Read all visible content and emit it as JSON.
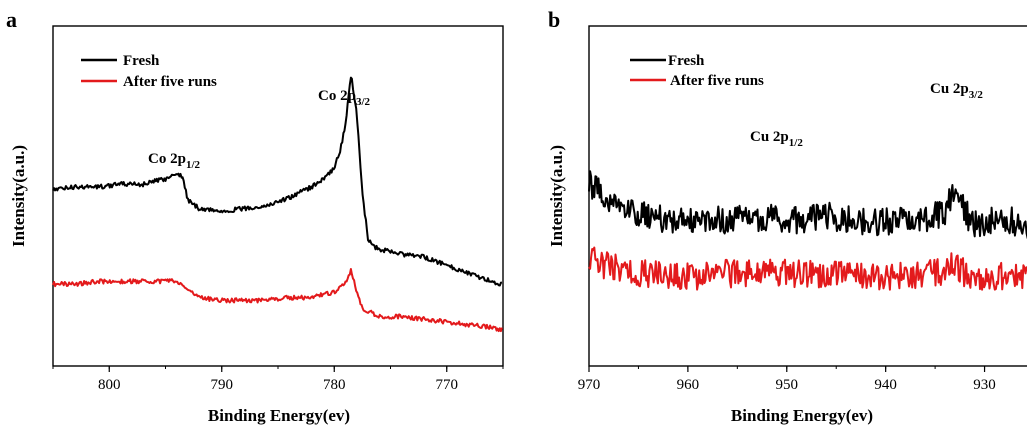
{
  "chart_data": [
    {
      "type": "line",
      "panel_label": "a",
      "xlabel": "Binding Energy(ev)",
      "ylabel": "Intensity(a.u.)",
      "xlim": [
        805,
        765
      ],
      "x_ticks": [
        800,
        790,
        780,
        770
      ],
      "y_ticks_shown": false,
      "legend": {
        "placement": "top-left",
        "entries": [
          "Fresh",
          "After five runs"
        ]
      },
      "annotations": [
        {
          "main": "Co 2p",
          "sub": "1/2",
          "x": 795,
          "series": "Fresh"
        },
        {
          "main": "Co 2p",
          "sub": "3/2",
          "x": 778.5,
          "series": "Fresh"
        }
      ],
      "series": [
        {
          "name": "Fresh",
          "color": "#000000",
          "x": [
            805,
            803,
            801,
            799,
            797,
            795,
            794,
            793.5,
            793,
            792,
            790,
            788,
            786,
            784,
            782,
            781,
            780,
            779.5,
            779,
            778.5,
            778,
            777.5,
            777,
            776.5,
            776,
            774,
            772,
            770,
            768,
            766,
            765
          ],
          "y": [
            0.52,
            0.53,
            0.53,
            0.54,
            0.54,
            0.56,
            0.58,
            0.57,
            0.48,
            0.45,
            0.44,
            0.45,
            0.46,
            0.49,
            0.53,
            0.56,
            0.6,
            0.66,
            0.76,
            0.95,
            0.8,
            0.5,
            0.34,
            0.31,
            0.3,
            0.28,
            0.27,
            0.24,
            0.21,
            0.18,
            0.17
          ]
        },
        {
          "name": "After five runs",
          "color": "#e31a1c",
          "x": [
            805,
            803,
            801,
            799,
            797,
            795,
            794,
            793,
            792,
            790,
            788,
            786,
            784,
            782,
            780,
            779,
            778.5,
            778,
            777.5,
            776,
            774,
            772,
            770,
            768,
            766,
            765
          ],
          "y": [
            0.17,
            0.17,
            0.18,
            0.18,
            0.18,
            0.18,
            0.18,
            0.15,
            0.12,
            0.11,
            0.11,
            0.11,
            0.12,
            0.12,
            0.14,
            0.18,
            0.22,
            0.14,
            0.08,
            0.05,
            0.05,
            0.04,
            0.03,
            0.02,
            0.01,
            0.0
          ]
        }
      ]
    },
    {
      "type": "line",
      "panel_label": "b",
      "xlabel": "Binding Energy(ev)",
      "ylabel": "Intensity(a.u.)",
      "xlim": [
        970,
        925
      ],
      "x_ticks": [
        970,
        960,
        950,
        940,
        930
      ],
      "y_ticks_shown": false,
      "legend": {
        "placement": "top-left",
        "entries": [
          "Fresh",
          "After five runs"
        ]
      },
      "annotations": [
        {
          "main": "Cu 2p",
          "sub": "1/2",
          "x": 951,
          "series": "Fresh"
        },
        {
          "main": "Cu 2p",
          "sub": "3/2",
          "x": 933,
          "series": "Fresh"
        }
      ],
      "series": [
        {
          "name": "Fresh",
          "color": "#000000",
          "x": [
            970,
            968,
            966,
            964,
            962,
            960,
            958,
            956,
            954,
            952,
            950,
            948,
            946,
            944,
            942,
            940,
            938,
            936,
            934,
            933,
            932,
            931,
            930,
            928,
            926,
            925
          ],
          "y": [
            0.62,
            0.56,
            0.52,
            0.48,
            0.47,
            0.47,
            0.47,
            0.47,
            0.48,
            0.48,
            0.47,
            0.47,
            0.49,
            0.47,
            0.46,
            0.46,
            0.47,
            0.47,
            0.5,
            0.6,
            0.5,
            0.45,
            0.46,
            0.47,
            0.45,
            0.45
          ]
        },
        {
          "name": "After five runs",
          "color": "#e31a1c",
          "x": [
            970,
            968,
            966,
            964,
            962,
            960,
            958,
            956,
            954,
            952,
            950,
            948,
            946,
            944,
            942,
            940,
            938,
            936,
            934,
            933,
            932,
            931,
            930,
            928,
            926,
            925
          ],
          "y": [
            0.3,
            0.27,
            0.25,
            0.24,
            0.23,
            0.23,
            0.23,
            0.24,
            0.24,
            0.24,
            0.24,
            0.24,
            0.24,
            0.24,
            0.23,
            0.23,
            0.23,
            0.24,
            0.25,
            0.29,
            0.24,
            0.22,
            0.23,
            0.23,
            0.22,
            0.22
          ]
        }
      ]
    }
  ]
}
